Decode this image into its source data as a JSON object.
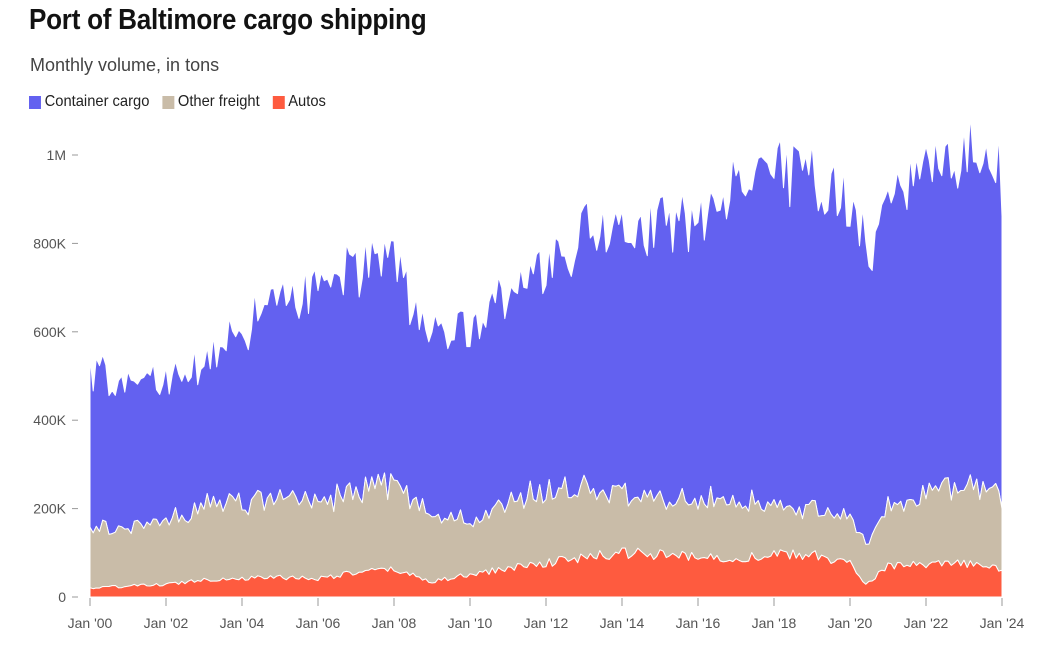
{
  "header": {
    "title": "Port of Baltimore cargo shipping",
    "subtitle": "Monthly volume, in tons"
  },
  "chart_data": {
    "type": "area",
    "stacked": true,
    "x_start": "2000-01",
    "x_end": "2024-01",
    "x_ticks": [
      "Jan '00",
      "Jan '02",
      "Jan '04",
      "Jan '06",
      "Jan '08",
      "Jan '10",
      "Jan '12",
      "Jan '14",
      "Jan '16",
      "Jan '18",
      "Jan '20",
      "Jan '22",
      "Jan '24"
    ],
    "y_ticks": [
      {
        "value": 0,
        "label": "0"
      },
      {
        "value": 200000,
        "label": "200K"
      },
      {
        "value": 400000,
        "label": "400K"
      },
      {
        "value": 600000,
        "label": "600K"
      },
      {
        "value": 800000,
        "label": "800K"
      },
      {
        "value": 1000000,
        "label": "1M"
      }
    ],
    "ylim": [
      0,
      1000000
    ],
    "legend_position": "top-left",
    "series_order": [
      "Autos",
      "Other freight",
      "Container cargo"
    ],
    "series": [
      {
        "name": "Autos",
        "color": "#fe5b3f",
        "anchors": [
          [
            "2000-01",
            20000
          ],
          [
            "2001-01",
            25000
          ],
          [
            "2002-01",
            28000
          ],
          [
            "2003-01",
            40000
          ],
          [
            "2004-01",
            42000
          ],
          [
            "2005-01",
            45000
          ],
          [
            "2006-01",
            42000
          ],
          [
            "2007-01",
            55000
          ],
          [
            "2008-01",
            62000
          ],
          [
            "2009-01",
            35000
          ],
          [
            "2010-01",
            50000
          ],
          [
            "2011-01",
            65000
          ],
          [
            "2012-01",
            78000
          ],
          [
            "2013-01",
            88000
          ],
          [
            "2014-01",
            100000
          ],
          [
            "2015-01",
            95000
          ],
          [
            "2016-01",
            90000
          ],
          [
            "2017-01",
            88000
          ],
          [
            "2018-01",
            95000
          ],
          [
            "2019-01",
            95000
          ],
          [
            "2020-01",
            75000
          ],
          [
            "2020-06",
            30000
          ],
          [
            "2021-01",
            70000
          ],
          [
            "2022-01",
            72000
          ],
          [
            "2023-01",
            75000
          ],
          [
            "2024-01",
            65000
          ]
        ]
      },
      {
        "name": "Other freight",
        "color": "#c9bca8",
        "anchors": [
          [
            "2000-01",
            130000
          ],
          [
            "2001-01",
            135000
          ],
          [
            "2002-01",
            140000
          ],
          [
            "2003-01",
            170000
          ],
          [
            "2004-01",
            170000
          ],
          [
            "2005-01",
            175000
          ],
          [
            "2006-01",
            180000
          ],
          [
            "2007-01",
            180000
          ],
          [
            "2008-01",
            190000
          ],
          [
            "2009-01",
            150000
          ],
          [
            "2010-01",
            120000
          ],
          [
            "2011-01",
            145000
          ],
          [
            "2012-01",
            170000
          ],
          [
            "2013-01",
            160000
          ],
          [
            "2014-01",
            140000
          ],
          [
            "2015-01",
            125000
          ],
          [
            "2016-01",
            130000
          ],
          [
            "2017-01",
            135000
          ],
          [
            "2018-01",
            110000
          ],
          [
            "2019-01",
            105000
          ],
          [
            "2020-01",
            105000
          ],
          [
            "2020-06",
            90000
          ],
          [
            "2021-01",
            140000
          ],
          [
            "2022-01",
            160000
          ],
          [
            "2023-01",
            175000
          ],
          [
            "2024-01",
            160000
          ]
        ]
      },
      {
        "name": "Container cargo",
        "color": "#6361f0",
        "anchors": [
          [
            "2000-01",
            350000
          ],
          [
            "2001-01",
            330000
          ],
          [
            "2002-01",
            320000
          ],
          [
            "2003-01",
            330000
          ],
          [
            "2004-01",
            400000
          ],
          [
            "2005-01",
            450000
          ],
          [
            "2006-01",
            480000
          ],
          [
            "2007-01",
            500000
          ],
          [
            "2008-01",
            500000
          ],
          [
            "2009-01",
            410000
          ],
          [
            "2010-01",
            450000
          ],
          [
            "2011-01",
            480000
          ],
          [
            "2012-01",
            520000
          ],
          [
            "2013-01",
            580000
          ],
          [
            "2014-01",
            600000
          ],
          [
            "2015-01",
            620000
          ],
          [
            "2016-01",
            640000
          ],
          [
            "2017-01",
            700000
          ],
          [
            "2018-01",
            740000
          ],
          [
            "2019-01",
            760000
          ],
          [
            "2020-01",
            700000
          ],
          [
            "2020-06",
            660000
          ],
          [
            "2021-01",
            680000
          ],
          [
            "2022-01",
            720000
          ],
          [
            "2023-01",
            760000
          ],
          [
            "2024-01",
            730000
          ]
        ]
      }
    ]
  }
}
